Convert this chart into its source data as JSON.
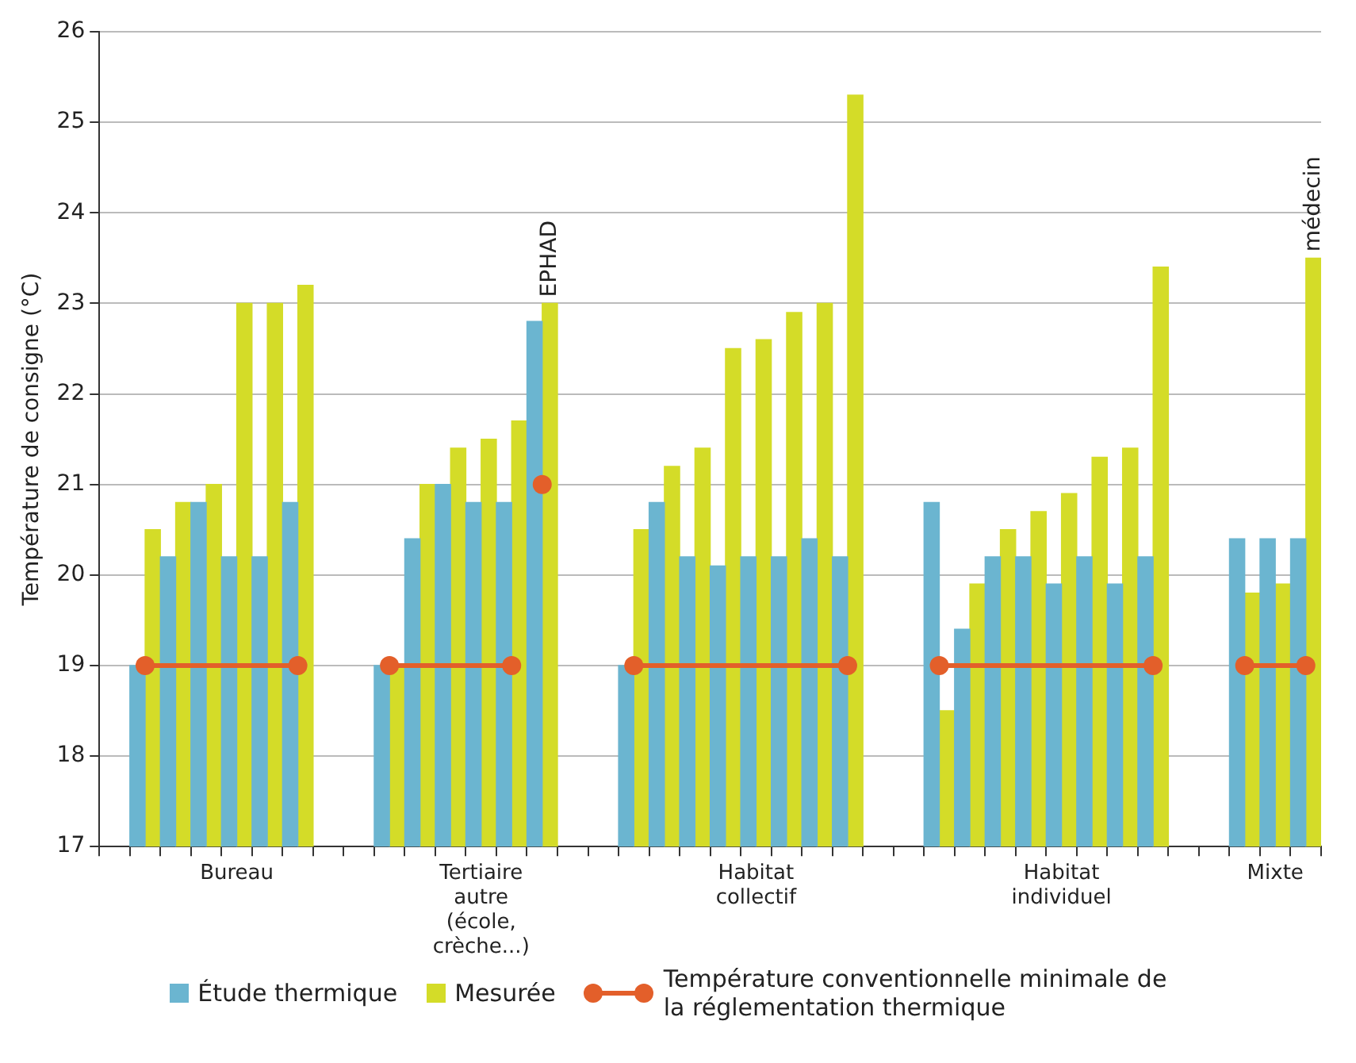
{
  "chart_data": {
    "type": "bar",
    "ylabel": "Température de consigne (°C)",
    "categories": [
      null,
      null,
      null,
      null,
      "Bureau",
      null,
      null,
      null,
      null,
      null,
      null,
      null,
      "Tertiaire autre (école, crèche...)",
      null,
      null,
      null,
      null,
      null,
      null,
      null,
      null,
      "Habitat collectif",
      null,
      null,
      null,
      null,
      null,
      null,
      null,
      null,
      null,
      "Habitat individuel",
      null,
      null,
      null,
      null,
      null,
      null,
      "Mixte",
      null
    ],
    "series": [
      {
        "name": "Étude thermique",
        "color": "#6bb5d0",
        "values": [
          null,
          19,
          20.2,
          20.8,
          20.2,
          20.2,
          20.8,
          null,
          null,
          19,
          20.4,
          21.0,
          20.8,
          20.8,
          22.8,
          null,
          null,
          19,
          20.8,
          20.2,
          20.1,
          20.2,
          20.2,
          20.4,
          20.2,
          null,
          null,
          20.8,
          19.4,
          20.2,
          20.2,
          19.9,
          20.2,
          19.9,
          20.2,
          null,
          null,
          20.4,
          20.4,
          20.4
        ]
      },
      {
        "name": "Mesurée",
        "color": "#d4dc28",
        "values": [
          null,
          20.5,
          20.8,
          21.0,
          23.0,
          23.0,
          23.2,
          null,
          null,
          19,
          21.0,
          21.4,
          21.5,
          21.7,
          23.0,
          null,
          null,
          20.5,
          21.2,
          21.4,
          22.5,
          22.6,
          22.9,
          23.0,
          25.3,
          null,
          null,
          18.5,
          19.9,
          20.5,
          20.7,
          20.9,
          21.3,
          21.4,
          23.4,
          null,
          null,
          19.8,
          19.9,
          23.5
        ]
      },
      {
        "name": "Température conventionnelle minimale de la réglementation thermique",
        "type": "line",
        "color": "#e35f2a",
        "values": [
          null,
          19,
          null,
          null,
          null,
          null,
          19,
          null,
          null,
          null,
          null,
          null,
          null,
          null,
          null,
          null,
          null,
          null,
          null,
          null,
          null,
          null,
          null,
          null,
          null,
          null,
          null,
          null,
          null,
          null,
          null,
          null,
          null,
          null,
          null,
          null,
          null,
          null,
          null,
          null
        ]
      },
      {
        "type": "line",
        "color": "#e35f2a",
        "values": [
          null,
          null,
          null,
          null,
          null,
          null,
          null,
          null,
          null,
          19,
          null,
          null,
          null,
          19,
          null,
          null,
          null,
          null,
          null,
          null,
          null,
          null,
          null,
          null,
          null,
          null,
          null,
          null,
          null,
          null,
          null,
          null,
          null,
          null,
          null,
          null,
          null,
          null,
          null,
          null
        ]
      },
      {
        "type": "line",
        "color": "#e35f2a",
        "values": [
          null,
          null,
          null,
          null,
          null,
          null,
          null,
          null,
          null,
          null,
          null,
          null,
          null,
          null,
          21,
          null,
          null,
          null,
          null,
          null,
          null,
          null,
          null,
          null,
          null,
          null,
          null,
          null,
          null,
          null,
          null,
          null,
          null,
          null,
          null,
          null,
          null,
          null,
          null,
          null
        ]
      },
      {
        "type": "line",
        "color": "#e35f2a",
        "values": [
          null,
          null,
          null,
          null,
          null,
          null,
          null,
          null,
          null,
          null,
          null,
          null,
          null,
          null,
          null,
          null,
          null,
          19,
          null,
          null,
          null,
          null,
          null,
          null,
          19,
          null,
          null,
          null,
          null,
          null,
          null,
          null,
          null,
          null,
          null,
          null,
          null,
          null,
          null,
          null
        ]
      },
      {
        "type": "line",
        "color": "#e35f2a",
        "values": [
          null,
          null,
          null,
          null,
          null,
          null,
          null,
          null,
          null,
          null,
          null,
          null,
          null,
          null,
          null,
          null,
          null,
          null,
          null,
          null,
          null,
          null,
          null,
          null,
          null,
          null,
          null,
          19,
          null,
          null,
          null,
          null,
          null,
          null,
          19,
          null,
          null,
          null,
          null,
          null
        ]
      },
      {
        "type": "line",
        "color": "#e35f2a",
        "values": [
          null,
          null,
          null,
          null,
          null,
          null,
          null,
          null,
          null,
          null,
          null,
          null,
          null,
          null,
          null,
          null,
          null,
          null,
          null,
          null,
          null,
          null,
          null,
          null,
          null,
          null,
          null,
          null,
          null,
          null,
          null,
          null,
          null,
          null,
          null,
          null,
          null,
          19,
          null,
          19
        ]
      }
    ],
    "ylim": [
      17,
      26
    ],
    "yticks": [
      17,
      18,
      19,
      20,
      21,
      22,
      23,
      24,
      25,
      26
    ],
    "grid": "y",
    "legend": "bottom",
    "marker": "circle",
    "annotations": [
      {
        "text": "EPHAD",
        "y": 23.0
      },
      {
        "text": "médecin",
        "y": 23.5
      }
    ]
  }
}
